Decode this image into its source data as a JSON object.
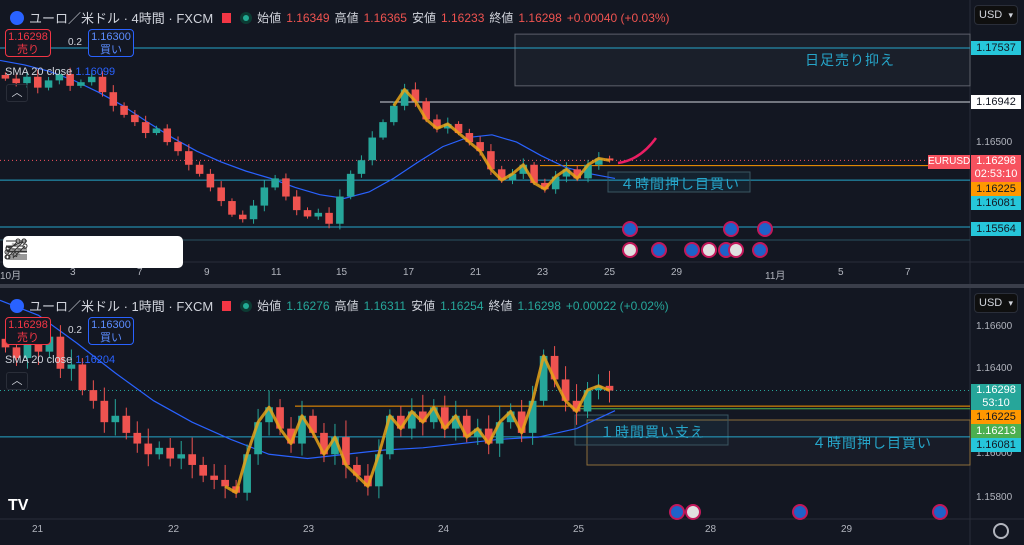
{
  "top": {
    "symbol": "ユーロ／米ドル · 4時間 · FXCM",
    "ohlc": {
      "open_label": "始値",
      "open": "1.16349",
      "high_label": "高値",
      "high": "1.16365",
      "low_label": "安値",
      "low": "1.16233",
      "close_label": "終値",
      "close": "1.16298",
      "change": "+0.00040 (+0.03%)"
    },
    "sell": {
      "price": "1.16298",
      "label": "売り"
    },
    "buy": {
      "price": "1.16300",
      "label": "買い"
    },
    "spread": "0.2",
    "sma": {
      "label": "SMA 20 close",
      "value": "1.16099"
    },
    "currency": "USD",
    "symbol_tag": "EURUSD",
    "countdown": "02:53:10",
    "notes": {
      "daily": "日足売り抑え",
      "h4": "４時間押し目買い"
    }
  },
  "bottom": {
    "symbol": "ユーロ／米ドル · 1時間 · FXCM",
    "ohlc": {
      "open_label": "始値",
      "open": "1.16276",
      "high_label": "高値",
      "high": "1.16311",
      "low_label": "安値",
      "low": "1.16254",
      "close_label": "終値",
      "close": "1.16298",
      "change": "+0.00022 (+0.02%)"
    },
    "sell": {
      "price": "1.16298",
      "label": "売り"
    },
    "buy": {
      "price": "1.16300",
      "label": "買い"
    },
    "spread": "0.2",
    "sma": {
      "label": "SMA 20 close",
      "value": "1.16204"
    },
    "currency": "USD",
    "countdown": "53:10",
    "notes": {
      "h1": "１時間買い支え",
      "h4": "４時間押し目買い"
    }
  },
  "colors": {
    "up": "#26a69a",
    "down": "#ef5350",
    "sma": "#2962ff",
    "zigzag": "#e8a317",
    "level_cyan": "#00bcd4",
    "level_orange": "#ff9800",
    "level_green": "#4caf50",
    "background": "#131722"
  },
  "toolbar": {
    "icons": [
      "drag-handle-icon",
      "trend-line-icon",
      "parallel-channel-icon",
      "fib-retracement-icon",
      "horizontal-ray-icon",
      "horizontal-lines-icon"
    ]
  },
  "chart_data": [
    {
      "type": "candlestick",
      "timeframe": "4時間",
      "x_ticks": [
        "10月",
        "3",
        "7",
        "9",
        "11",
        "15",
        "17",
        "21",
        "23",
        "25",
        "29",
        "11月",
        "5",
        "7"
      ],
      "y_ticks": [
        "1.16500"
      ],
      "levels": [
        {
          "price": "1.17537",
          "color": "cyan"
        },
        {
          "price": "1.16942",
          "color": "white"
        },
        {
          "price": "1.16298",
          "color": "red",
          "label": "current"
        },
        {
          "price": "1.16225",
          "color": "orange"
        },
        {
          "price": "1.16081",
          "color": "cyan"
        },
        {
          "price": "1.15564",
          "color": "cyan"
        }
      ],
      "zone": {
        "from": 1.1712,
        "to": 1.1769,
        "label": "日足売り抑え"
      },
      "closes": [
        1.172,
        1.1715,
        1.1722,
        1.171,
        1.1718,
        1.1725,
        1.1712,
        1.1716,
        1.1722,
        1.1705,
        1.169,
        1.168,
        1.1672,
        1.166,
        1.1665,
        1.165,
        1.164,
        1.1625,
        1.1615,
        1.16,
        1.1585,
        1.157,
        1.1565,
        1.158,
        1.16,
        1.161,
        1.159,
        1.1575,
        1.1568,
        1.1572,
        1.156,
        1.159,
        1.1615,
        1.163,
        1.1655,
        1.1672,
        1.169,
        1.1708,
        1.1695,
        1.1675,
        1.1665,
        1.167,
        1.166,
        1.165,
        1.164,
        1.162,
        1.1608,
        1.1615,
        1.1625,
        1.1605,
        1.1598,
        1.1612,
        1.162,
        1.161,
        1.1625,
        1.1632,
        1.16298
      ],
      "sma": [
        1.174,
        1.1735,
        1.1728,
        1.1718,
        1.1705,
        1.169,
        1.1672,
        1.1655,
        1.164,
        1.1628,
        1.1618,
        1.161,
        1.16,
        1.1592,
        1.1588,
        1.1595,
        1.161,
        1.1628,
        1.1645,
        1.1655,
        1.1658,
        1.165,
        1.1635,
        1.1622,
        1.1615,
        1.16099
      ],
      "ylim": [
        1.153,
        1.18
      ]
    },
    {
      "type": "candlestick",
      "timeframe": "1時間",
      "x_ticks": [
        "21",
        "22",
        "23",
        "24",
        "25",
        "28",
        "29"
      ],
      "y_ticks": [
        "1.16600",
        "1.16400",
        "1.16000",
        "1.15800"
      ],
      "levels": [
        {
          "price": "1.16298",
          "color": "teal",
          "label": "current"
        },
        {
          "price": "1.16225",
          "color": "orange"
        },
        {
          "price": "1.16213",
          "color": "green"
        },
        {
          "price": "1.16081",
          "color": "cyan"
        }
      ],
      "closes": [
        1.165,
        1.1645,
        1.1652,
        1.1648,
        1.1655,
        1.164,
        1.1642,
        1.163,
        1.1625,
        1.1615,
        1.1618,
        1.161,
        1.1605,
        1.16,
        1.1603,
        1.1598,
        1.16,
        1.1595,
        1.159,
        1.1588,
        1.1585,
        1.1582,
        1.16,
        1.1615,
        1.1622,
        1.1612,
        1.1605,
        1.1618,
        1.161,
        1.16,
        1.1608,
        1.1595,
        1.159,
        1.1585,
        1.16,
        1.1618,
        1.1612,
        1.162,
        1.1615,
        1.1622,
        1.1612,
        1.1618,
        1.1608,
        1.1612,
        1.1605,
        1.1615,
        1.162,
        1.161,
        1.1625,
        1.1646,
        1.1635,
        1.1625,
        1.162,
        1.163,
        1.1632,
        1.16298
      ],
      "sma": [
        1.1672,
        1.1665,
        1.1652,
        1.1638,
        1.1625,
        1.1615,
        1.1607,
        1.16,
        1.1598,
        1.16,
        1.1602,
        1.1603,
        1.1605,
        1.1607,
        1.1608,
        1.1612,
        1.16204
      ],
      "ylim": [
        1.1572,
        1.1675
      ]
    }
  ]
}
